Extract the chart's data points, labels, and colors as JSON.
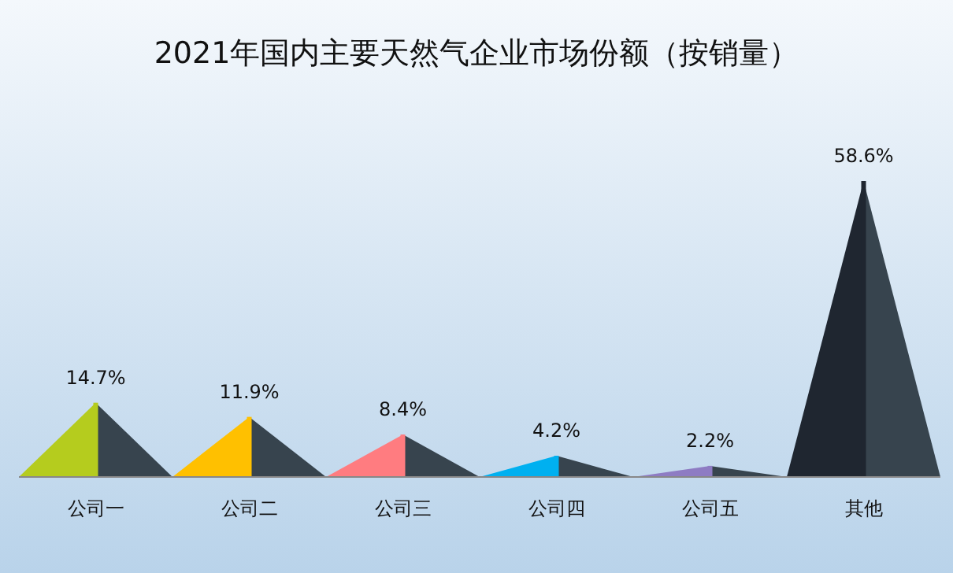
{
  "chart_data": {
    "type": "bar",
    "title": "2021年国内主要天然气企业市场份额（按销量）",
    "categories": [
      "公司一",
      "公司二",
      "公司三",
      "公司四",
      "公司五",
      "其他"
    ],
    "values": [
      14.7,
      11.9,
      8.4,
      4.2,
      2.2,
      58.6
    ],
    "value_labels": [
      "14.7%",
      "11.9%",
      "8.4%",
      "4.2%",
      "2.2%",
      "58.6%"
    ],
    "colors": [
      "#b5cc1e",
      "#ffc000",
      "#ff7c80",
      "#00b0f0",
      "#8e7cc3",
      "#1f2630"
    ]
  }
}
